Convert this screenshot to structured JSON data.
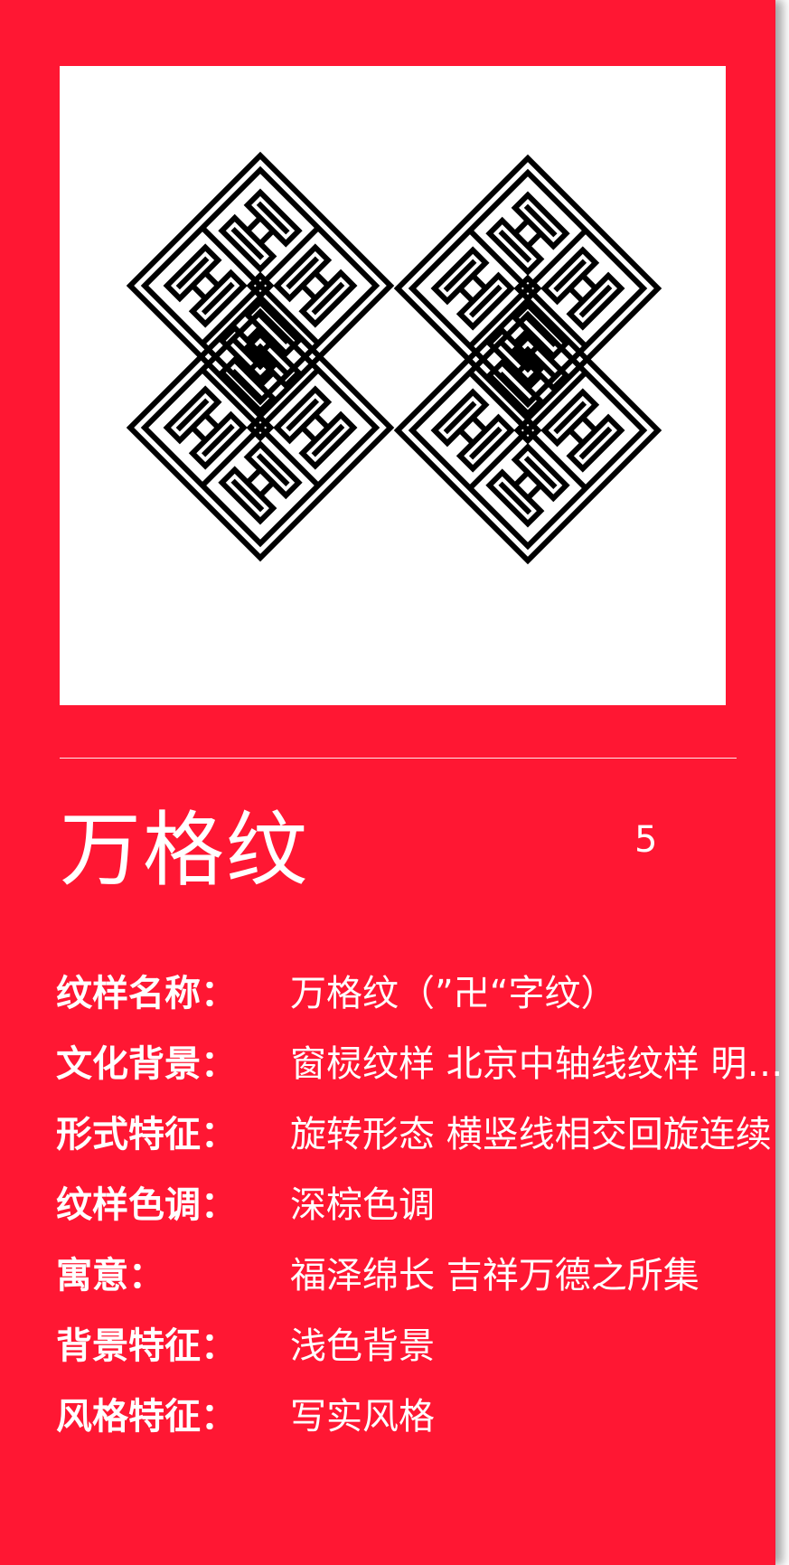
{
  "card": {
    "title": "万格纹",
    "index": "5",
    "colors": {
      "background": "#ff1733",
      "text": "#ffffff",
      "image_bg": "#ffffff",
      "pattern": "#000000"
    },
    "image": {
      "icon": "wange-pattern-icon"
    }
  },
  "details": [
    {
      "label": "纹样名称：",
      "value": "万格纹（”卍“字纹）"
    },
    {
      "label": "文化背景：",
      "value": "窗棂纹样 北京中轴线纹样 明清建筑装饰"
    },
    {
      "label": "形式特征：",
      "value": "旋转形态 横竖线相交回旋连续"
    },
    {
      "label": "纹样色调：",
      "value": "深棕色调"
    },
    {
      "label": "寓意：",
      "value": "福泽绵长 吉祥万德之所集"
    },
    {
      "label": "背景特征：",
      "value": "浅色背景"
    },
    {
      "label": "风格特征：",
      "value": "写实风格"
    }
  ]
}
